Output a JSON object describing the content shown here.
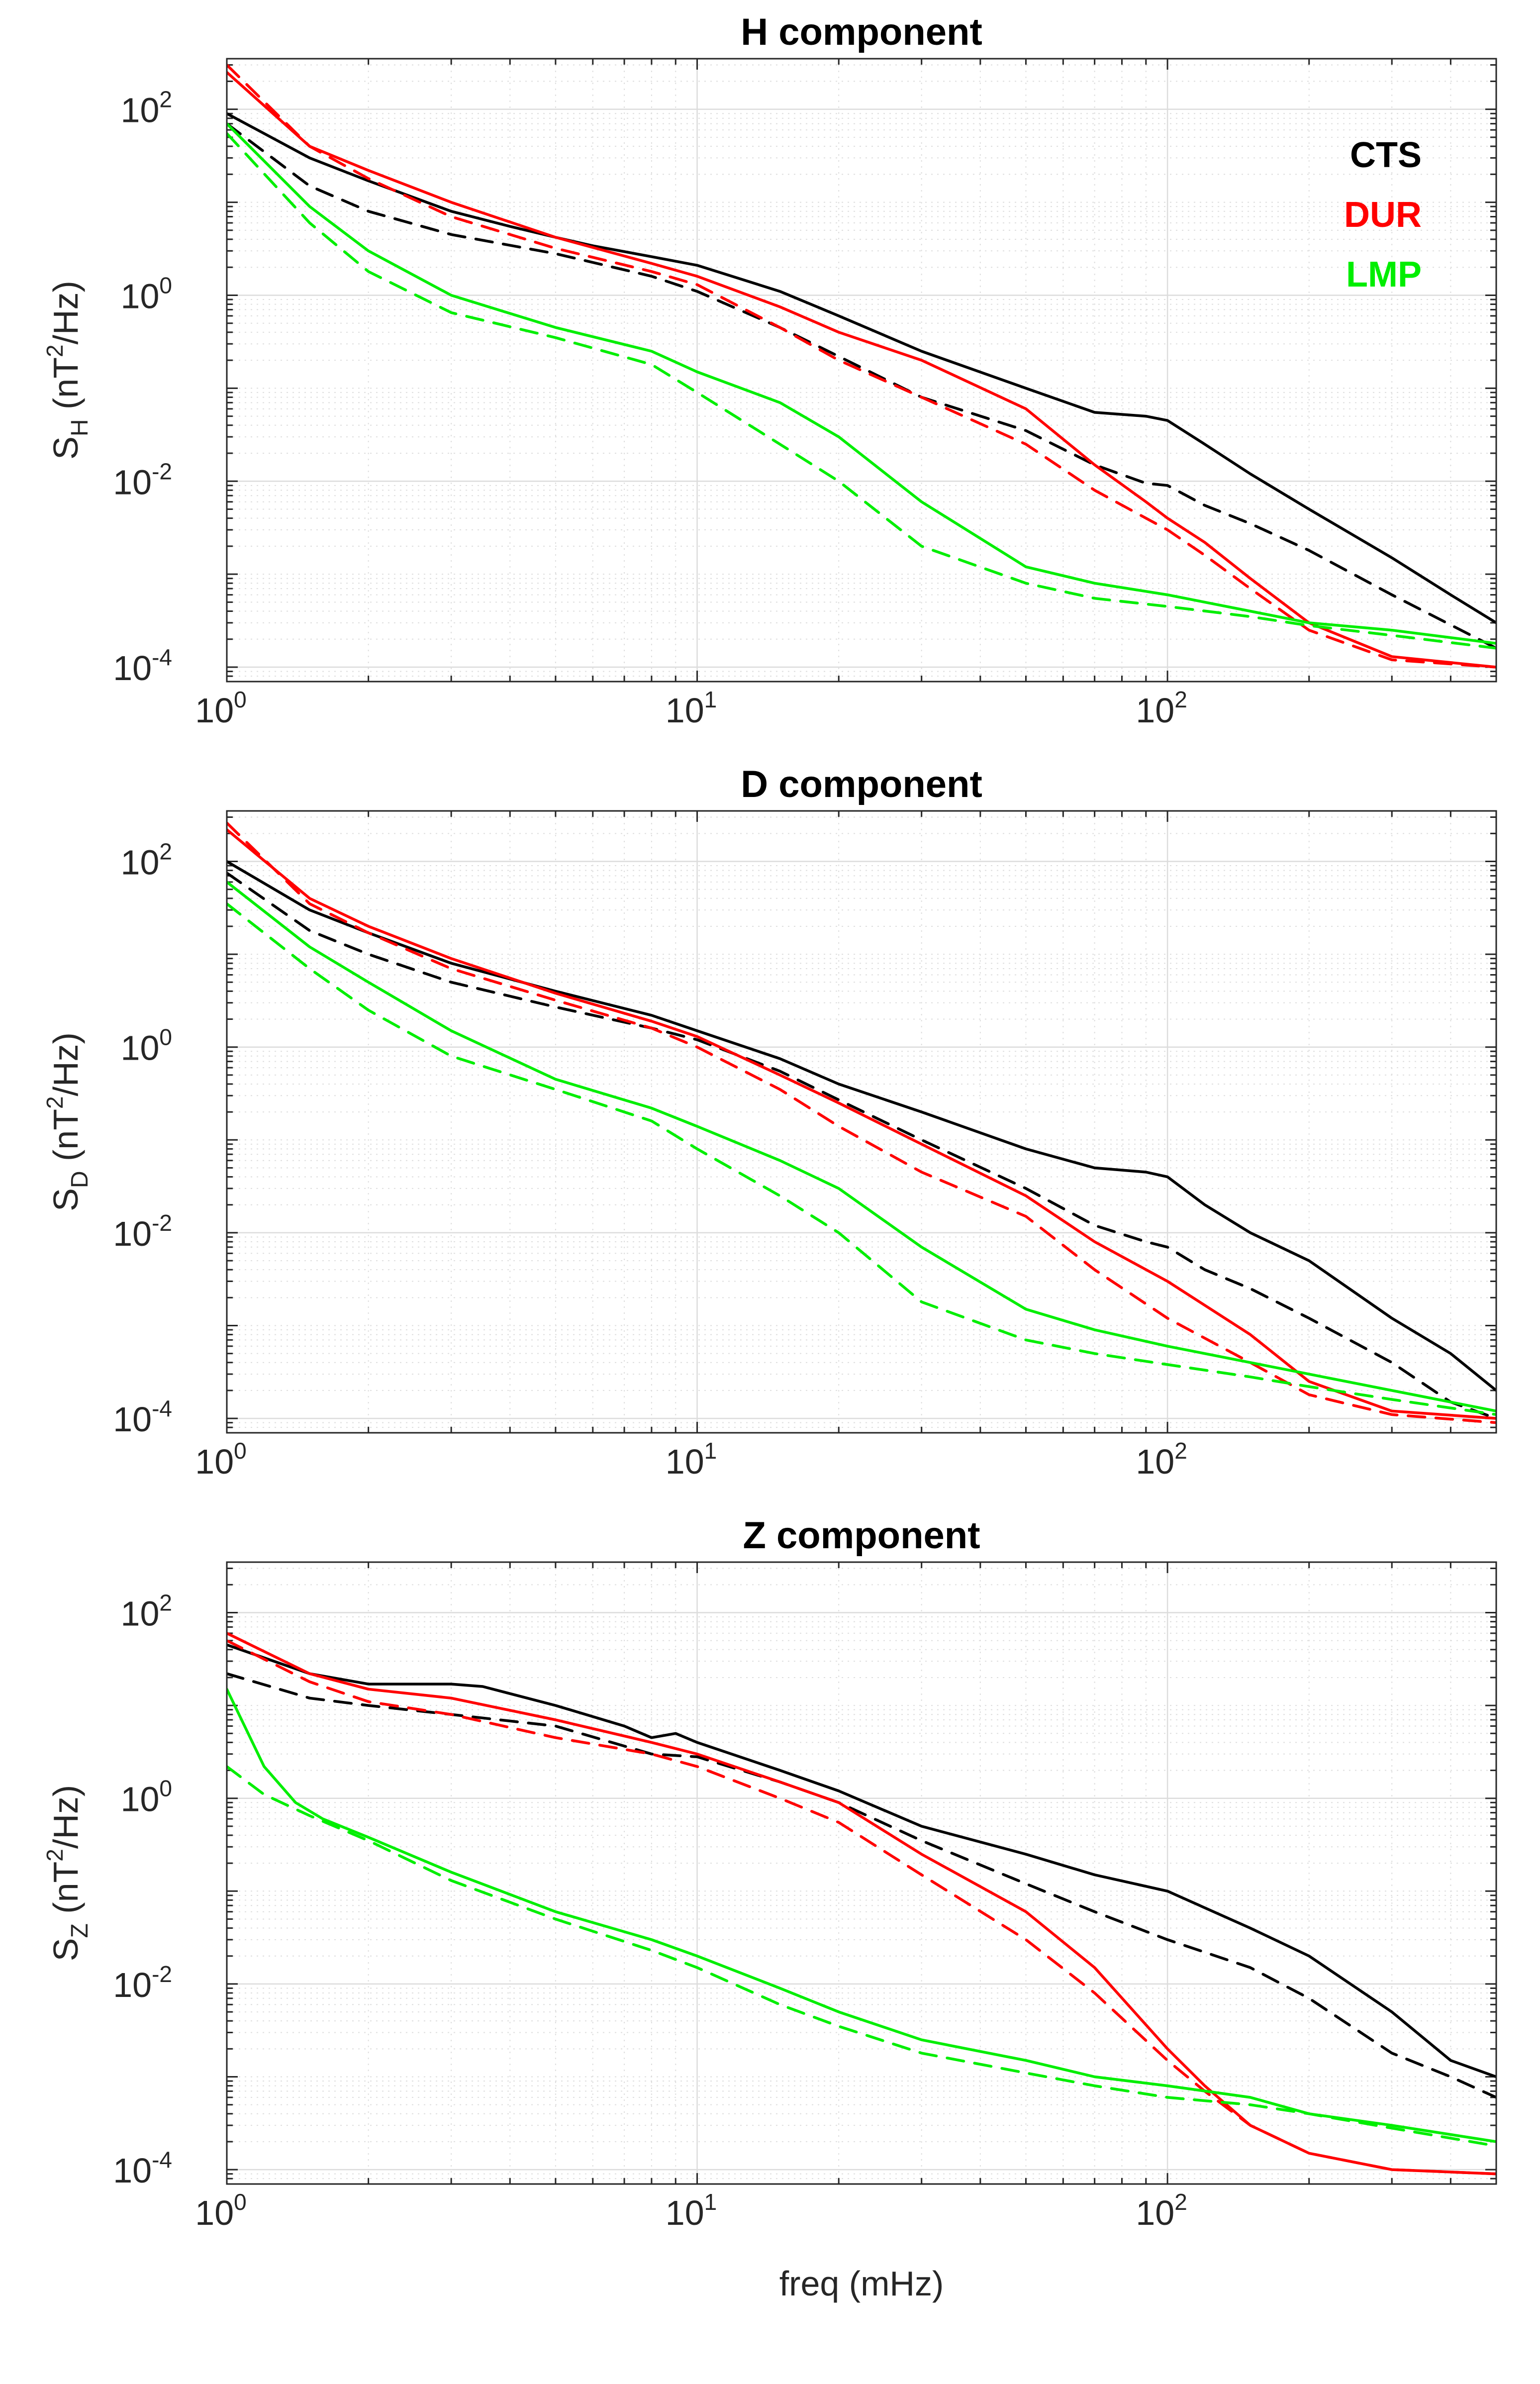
{
  "chart_data": [
    {
      "type": "line",
      "title": "H component",
      "ylabel": "S",
      "ylabel_sub": "H",
      "ylabel_unit": " (nT",
      "ylabel_unit_exp": "2",
      "ylabel_unit_end": "/Hz)",
      "xlabel": "",
      "xscale": "log",
      "yscale": "log",
      "xlim": [
        1,
        500
      ],
      "ylim": [
        7e-05,
        350
      ],
      "xticks": [
        1,
        10,
        100
      ],
      "xtick_labels": [
        {
          "base": "10",
          "exp": "0"
        },
        {
          "base": "10",
          "exp": "1"
        },
        {
          "base": "10",
          "exp": "2"
        }
      ],
      "yticks": [
        0.0001,
        0.01,
        1,
        100
      ],
      "ytick_labels": [
        {
          "base": "10",
          "exp": "-4"
        },
        {
          "base": "10",
          "exp": "-2"
        },
        {
          "base": "10",
          "exp": "0"
        },
        {
          "base": "10",
          "exp": "2"
        }
      ],
      "grid": true,
      "legend": {
        "position": "top-right",
        "entries": [
          {
            "label": "CTS",
            "color": "#000000"
          },
          {
            "label": "DUR",
            "color": "#ff0000"
          },
          {
            "label": "LMP",
            "color": "#00ee00"
          }
        ]
      },
      "series": [
        {
          "name": "CTS",
          "style": "solid",
          "color": "#000000",
          "x": [
            1,
            1.5,
            2,
            3,
            4,
            5,
            6,
            8,
            10,
            15,
            20,
            30,
            50,
            70,
            90,
            100,
            120,
            150,
            200,
            300,
            400,
            500
          ],
          "y": [
            90,
            30,
            17,
            8,
            5.5,
            4.2,
            3.4,
            2.6,
            2.1,
            1.1,
            0.6,
            0.25,
            0.1,
            0.055,
            0.05,
            0.045,
            0.025,
            0.012,
            0.005,
            0.0015,
            0.0006,
            0.0003
          ]
        },
        {
          "name": "CTS",
          "style": "dashed",
          "color": "#000000",
          "x": [
            1,
            1.5,
            2,
            3,
            5,
            8,
            10,
            15,
            20,
            30,
            50,
            70,
            90,
            100,
            120,
            150,
            200,
            300,
            500
          ],
          "y": [
            70,
            15,
            8,
            4.5,
            2.8,
            1.6,
            1.1,
            0.45,
            0.22,
            0.08,
            0.035,
            0.015,
            0.0095,
            0.009,
            0.0055,
            0.0035,
            0.0018,
            0.0006,
            0.00016
          ]
        },
        {
          "name": "DUR",
          "style": "solid",
          "color": "#ff0000",
          "x": [
            1,
            1.5,
            2,
            3,
            5,
            8,
            10,
            15,
            20,
            30,
            50,
            70,
            90,
            100,
            120,
            150,
            200,
            300,
            500
          ],
          "y": [
            250,
            40,
            22,
            10,
            4.2,
            2.2,
            1.6,
            0.75,
            0.4,
            0.2,
            0.06,
            0.015,
            0.006,
            0.004,
            0.0022,
            0.0009,
            0.0003,
            0.00013,
            0.0001
          ]
        },
        {
          "name": "DUR",
          "style": "dashed",
          "color": "#ff0000",
          "x": [
            1,
            1.5,
            2,
            3,
            5,
            8,
            10,
            15,
            20,
            30,
            50,
            70,
            90,
            100,
            120,
            150,
            200,
            300,
            500
          ],
          "y": [
            300,
            40,
            18,
            7,
            3.2,
            1.8,
            1.3,
            0.45,
            0.2,
            0.08,
            0.025,
            0.008,
            0.004,
            0.003,
            0.0016,
            0.0007,
            0.00025,
            0.00012,
            0.0001
          ]
        },
        {
          "name": "LMP",
          "style": "solid",
          "color": "#00ee00",
          "x": [
            1,
            1.5,
            2,
            3,
            5,
            8,
            10,
            15,
            20,
            30,
            50,
            70,
            100,
            150,
            200,
            300,
            500
          ],
          "y": [
            70,
            9,
            3,
            1,
            0.45,
            0.25,
            0.15,
            0.07,
            0.03,
            0.006,
            0.0012,
            0.0008,
            0.0006,
            0.0004,
            0.0003,
            0.00025,
            0.00018
          ]
        },
        {
          "name": "LMP",
          "style": "dashed",
          "color": "#00ee00",
          "x": [
            1,
            1.5,
            2,
            3,
            5,
            8,
            10,
            15,
            20,
            30,
            50,
            70,
            100,
            150,
            200,
            300,
            500
          ],
          "y": [
            55,
            6,
            1.8,
            0.65,
            0.35,
            0.18,
            0.09,
            0.025,
            0.01,
            0.002,
            0.0008,
            0.00055,
            0.00045,
            0.00035,
            0.00028,
            0.00022,
            0.00016
          ]
        }
      ]
    },
    {
      "type": "line",
      "title": "D component",
      "ylabel": "S",
      "ylabel_sub": "D",
      "ylabel_unit": " (nT",
      "ylabel_unit_exp": "2",
      "ylabel_unit_end": "/Hz)",
      "xlabel": "",
      "xscale": "log",
      "yscale": "log",
      "xlim": [
        1,
        500
      ],
      "ylim": [
        7e-05,
        350
      ],
      "xticks": [
        1,
        10,
        100
      ],
      "xtick_labels": [
        {
          "base": "10",
          "exp": "0"
        },
        {
          "base": "10",
          "exp": "1"
        },
        {
          "base": "10",
          "exp": "2"
        }
      ],
      "yticks": [
        0.0001,
        0.01,
        1,
        100
      ],
      "ytick_labels": [
        {
          "base": "10",
          "exp": "-4"
        },
        {
          "base": "10",
          "exp": "-2"
        },
        {
          "base": "10",
          "exp": "0"
        },
        {
          "base": "10",
          "exp": "2"
        }
      ],
      "grid": true,
      "series": [
        {
          "name": "CTS",
          "style": "solid",
          "color": "#000000",
          "x": [
            1,
            1.5,
            2,
            3,
            5,
            8,
            10,
            15,
            20,
            30,
            50,
            70,
            90,
            100,
            120,
            150,
            200,
            300,
            400,
            500
          ],
          "y": [
            100,
            30,
            17,
            8,
            4,
            2.2,
            1.5,
            0.75,
            0.4,
            0.2,
            0.08,
            0.05,
            0.045,
            0.04,
            0.02,
            0.01,
            0.005,
            0.0012,
            0.0005,
            0.0002
          ]
        },
        {
          "name": "CTS",
          "style": "dashed",
          "color": "#000000",
          "x": [
            1,
            1.5,
            2,
            3,
            5,
            8,
            10,
            15,
            20,
            30,
            50,
            70,
            90,
            100,
            120,
            150,
            200,
            300,
            400,
            500
          ],
          "y": [
            75,
            18,
            10,
            5,
            2.7,
            1.6,
            1.2,
            0.55,
            0.27,
            0.1,
            0.03,
            0.012,
            0.008,
            0.007,
            0.004,
            0.0025,
            0.0012,
            0.0004,
            0.00015,
            0.0001
          ]
        },
        {
          "name": "DUR",
          "style": "solid",
          "color": "#ff0000",
          "x": [
            1,
            1.5,
            2,
            3,
            5,
            8,
            10,
            15,
            20,
            30,
            50,
            70,
            100,
            150,
            200,
            300,
            500
          ],
          "y": [
            220,
            40,
            20,
            9,
            3.8,
            1.9,
            1.3,
            0.5,
            0.25,
            0.09,
            0.025,
            0.008,
            0.003,
            0.0008,
            0.00025,
            0.00012,
            0.0001
          ]
        },
        {
          "name": "DUR",
          "style": "dashed",
          "color": "#ff0000",
          "x": [
            1,
            1.5,
            2,
            3,
            5,
            8,
            10,
            15,
            20,
            30,
            50,
            70,
            100,
            150,
            200,
            300,
            500
          ],
          "y": [
            260,
            35,
            17,
            7,
            3.2,
            1.6,
            1,
            0.35,
            0.14,
            0.045,
            0.015,
            0.004,
            0.0012,
            0.0004,
            0.00018,
            0.00011,
            9e-05
          ]
        },
        {
          "name": "LMP",
          "style": "solid",
          "color": "#00ee00",
          "x": [
            1,
            1.5,
            2,
            3,
            5,
            8,
            10,
            15,
            20,
            30,
            50,
            70,
            100,
            150,
            200,
            300,
            500
          ],
          "y": [
            60,
            12,
            5,
            1.5,
            0.45,
            0.22,
            0.14,
            0.06,
            0.03,
            0.007,
            0.0015,
            0.0009,
            0.0006,
            0.0004,
            0.0003,
            0.0002,
            0.00012
          ]
        },
        {
          "name": "LMP",
          "style": "dashed",
          "color": "#00ee00",
          "x": [
            1,
            1.5,
            2,
            3,
            5,
            8,
            10,
            15,
            20,
            30,
            50,
            70,
            100,
            150,
            200,
            300,
            500
          ],
          "y": [
            35,
            7,
            2.5,
            0.8,
            0.35,
            0.16,
            0.08,
            0.025,
            0.01,
            0.0018,
            0.0007,
            0.0005,
            0.00038,
            0.00028,
            0.00022,
            0.00016,
            0.00011
          ]
        }
      ]
    },
    {
      "type": "line",
      "title": "Z component",
      "ylabel": "S",
      "ylabel_sub": "Z",
      "ylabel_unit": " (nT",
      "ylabel_unit_exp": "2",
      "ylabel_unit_end": "/Hz)",
      "xlabel": "freq (mHz)",
      "xscale": "log",
      "yscale": "log",
      "xlim": [
        1,
        500
      ],
      "ylim": [
        7e-05,
        350
      ],
      "xticks": [
        1,
        10,
        100
      ],
      "xtick_labels": [
        {
          "base": "10",
          "exp": "0"
        },
        {
          "base": "10",
          "exp": "1"
        },
        {
          "base": "10",
          "exp": "2"
        }
      ],
      "yticks": [
        0.0001,
        0.01,
        1,
        100
      ],
      "ytick_labels": [
        {
          "base": "10",
          "exp": "-4"
        },
        {
          "base": "10",
          "exp": "-2"
        },
        {
          "base": "10",
          "exp": "0"
        },
        {
          "base": "10",
          "exp": "2"
        }
      ],
      "grid": true,
      "series": [
        {
          "name": "CTS",
          "style": "solid",
          "color": "#000000",
          "x": [
            1,
            1.5,
            2,
            3,
            3.5,
            5,
            7,
            8,
            9,
            10,
            15,
            20,
            30,
            50,
            70,
            100,
            150,
            200,
            300,
            400,
            500
          ],
          "y": [
            45,
            22,
            17,
            17,
            16,
            10,
            6,
            4.5,
            5,
            4,
            2,
            1.2,
            0.5,
            0.25,
            0.15,
            0.1,
            0.04,
            0.02,
            0.005,
            0.0015,
            0.001
          ]
        },
        {
          "name": "CTS",
          "style": "dashed",
          "color": "#000000",
          "x": [
            1,
            1.5,
            2,
            3,
            5,
            8,
            10,
            15,
            20,
            30,
            50,
            70,
            100,
            150,
            200,
            300,
            400,
            500
          ],
          "y": [
            22,
            12,
            10,
            8,
            6,
            3,
            2.8,
            1.5,
            0.9,
            0.35,
            0.12,
            0.06,
            0.03,
            0.015,
            0.007,
            0.0018,
            0.001,
            0.0006
          ]
        },
        {
          "name": "DUR",
          "style": "solid",
          "color": "#ff0000",
          "x": [
            1,
            1.5,
            2,
            3,
            5,
            8,
            10,
            15,
            20,
            30,
            50,
            70,
            100,
            120,
            150,
            200,
            300,
            500
          ],
          "y": [
            60,
            22,
            15,
            12,
            7,
            4,
            3,
            1.5,
            0.9,
            0.25,
            0.06,
            0.015,
            0.002,
            0.0008,
            0.0003,
            0.00015,
            0.0001,
            9e-05
          ]
        },
        {
          "name": "DUR",
          "style": "dashed",
          "color": "#ff0000",
          "x": [
            1,
            1.5,
            2,
            3,
            5,
            8,
            10,
            15,
            20,
            30,
            50,
            70,
            100,
            120,
            150,
            200,
            300,
            500
          ],
          "y": [
            50,
            18,
            11,
            8,
            4.5,
            3,
            2.2,
            1,
            0.55,
            0.15,
            0.03,
            0.008,
            0.0015,
            0.0007,
            0.0003,
            0.00015,
            0.0001,
            9e-05
          ]
        },
        {
          "name": "LMP",
          "style": "solid",
          "color": "#00ee00",
          "x": [
            1,
            1.2,
            1.4,
            1.6,
            2,
            3,
            5,
            8,
            10,
            15,
            20,
            30,
            50,
            70,
            100,
            150,
            200,
            300,
            500
          ],
          "y": [
            15,
            2.2,
            0.9,
            0.6,
            0.38,
            0.16,
            0.06,
            0.03,
            0.02,
            0.009,
            0.005,
            0.0025,
            0.0015,
            0.001,
            0.0008,
            0.0006,
            0.0004,
            0.0003,
            0.0002
          ]
        },
        {
          "name": "LMP",
          "style": "dashed",
          "color": "#00ee00",
          "x": [
            1,
            1.2,
            1.5,
            2,
            3,
            5,
            8,
            10,
            15,
            20,
            30,
            50,
            70,
            100,
            150,
            200,
            300,
            500
          ],
          "y": [
            2.2,
            1.1,
            0.65,
            0.35,
            0.13,
            0.05,
            0.023,
            0.015,
            0.006,
            0.0035,
            0.0018,
            0.0011,
            0.0008,
            0.0006,
            0.0005,
            0.0004,
            0.00028,
            0.00018
          ]
        }
      ]
    }
  ]
}
